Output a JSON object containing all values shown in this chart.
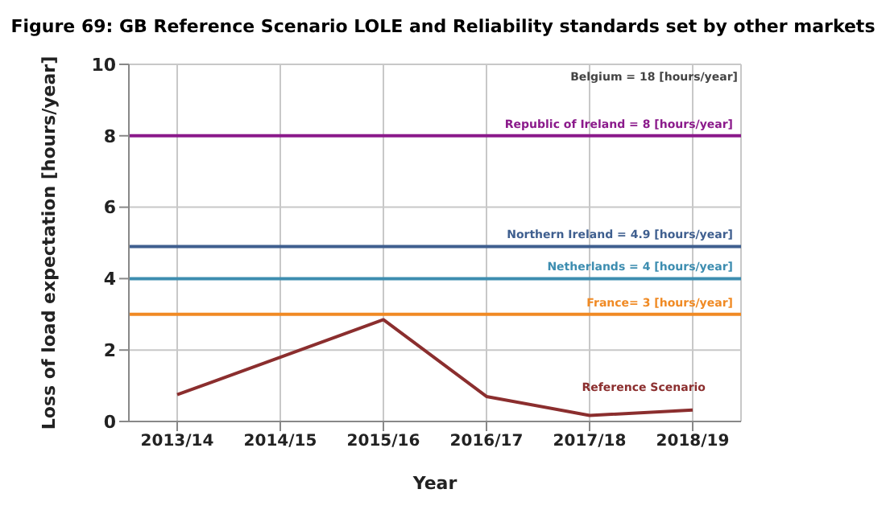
{
  "chart_data": {
    "type": "line",
    "title": "Figure 69: GB Reference Scenario LOLE and Reliability standards set by other markets",
    "xlabel": "Year",
    "ylabel": "Loss of load expectation [hours/year]",
    "categories": [
      "2013/14",
      "2014/15",
      "2015/16",
      "2016/17",
      "2017/18",
      "2018/19"
    ],
    "series": [
      {
        "name": "Reference Scenario",
        "color": "#8b2e2e",
        "values": [
          0.75,
          1.8,
          2.85,
          0.7,
          0.17,
          0.32
        ]
      }
    ],
    "ref_lines": [
      {
        "axis": "y",
        "value": 8,
        "label": "Republic of Ireland = 8 [hours/year]",
        "color": "#8b1a8b"
      },
      {
        "axis": "y",
        "value": 4.9,
        "label": "Northern Ireland = 4.9 [hours/year]",
        "color": "#3f5f8f"
      },
      {
        "axis": "y",
        "value": 4,
        "label": "Netherlands = 4 [hours/year]",
        "color": "#3d8db0"
      },
      {
        "axis": "y",
        "value": 3,
        "label": "France= 3 [hours/year]",
        "color": "#f08a24"
      }
    ],
    "annotations": [
      "Belgium = 18 [hours/year]"
    ],
    "ylim": [
      0,
      10
    ],
    "yticks": [
      0,
      2,
      4,
      6,
      8,
      10
    ],
    "grid": true,
    "marker": "none",
    "line_style": "solid"
  }
}
